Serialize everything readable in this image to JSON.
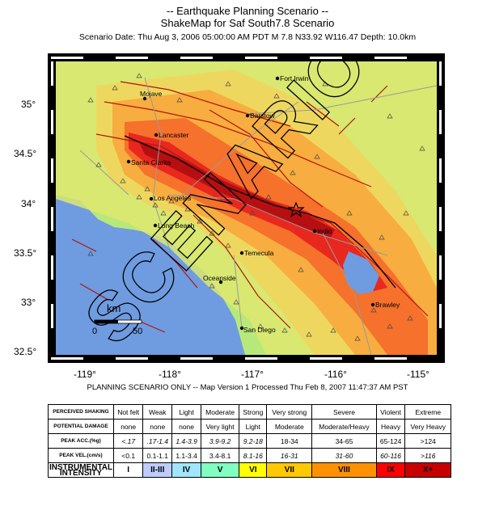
{
  "title_line1": "-- Earthquake Planning Scenario --",
  "title_line2": "ShakeMap for Saf South7.8 Scenario",
  "scenario_info": "Scenario Date: Thu Aug  3, 2006 05:00:00 AM PDT    M 7.8    N33.92 W116.47    Depth: 10.0km",
  "watermark": "SCENARIO",
  "lat_ticks": [
    "35°",
    "34.5°",
    "34°",
    "33.5°",
    "33°",
    "32.5°"
  ],
  "lon_ticks": [
    "-119°",
    "-118°",
    "-117°",
    "-116°",
    "-115°"
  ],
  "cities": [
    "Fort Irwin",
    "Mojave",
    "Barstow",
    "Lancaster",
    "Santa Clarita",
    "Los Angeles",
    "Long Beach",
    "Indio",
    "Temecula",
    "Oceanside",
    "Brawley",
    "San Diego"
  ],
  "scale_bar": {
    "unit": "km",
    "zero": "0",
    "max": "50"
  },
  "processed_line": "PLANNING SCENARIO ONLY -- Map Version 1 Processed Thu Feb 8, 2007 11:47:37 AM PST",
  "legend": {
    "row_headers": [
      "PERCEIVED SHAKING",
      "POTENTIAL DAMAGE",
      "PEAK ACC.(%g)",
      "PEAK VEL.(cm/s)",
      "INSTRUMENTAL INTENSITY"
    ],
    "shaking": [
      "Not felt",
      "Weak",
      "Light",
      "Moderate",
      "Strong",
      "Very strong",
      "Severe",
      "Violent",
      "Extreme"
    ],
    "damage": [
      "none",
      "none",
      "none",
      "Very light",
      "Light",
      "Moderate",
      "Moderate/Heavy",
      "Heavy",
      "Very Heavy"
    ],
    "pga": [
      "<.17",
      ".17-1.4",
      "1.4-3.9",
      "3.9-9.2",
      "9.2-18",
      "18-34",
      "34-65",
      "65-124",
      ">124"
    ],
    "pgv": [
      "<0.1",
      "0.1-1.1",
      "1.1-3.4",
      "3.4-8.1",
      "8.1-16",
      "16-31",
      "31-60",
      "60-116",
      ">116"
    ],
    "intensity": [
      "I",
      "II-III",
      "IV",
      "V",
      "VI",
      "VII",
      "VIII",
      "IX",
      "X+"
    ],
    "intensity_colors": [
      "#ffffff",
      "#bfccff",
      "#a0e6ff",
      "#80ffc0",
      "#ffff00",
      "#ffc800",
      "#ff9100",
      "#ff0000",
      "#c80000"
    ]
  }
}
